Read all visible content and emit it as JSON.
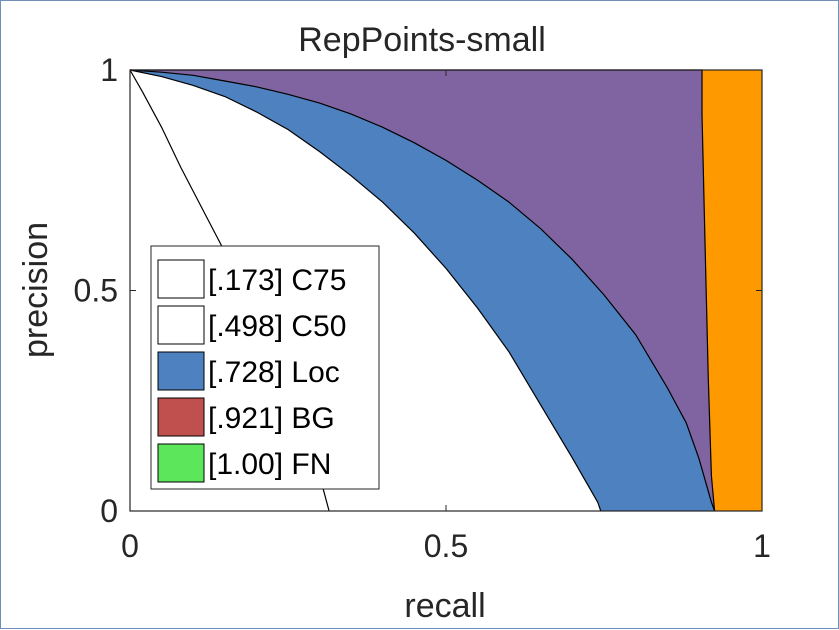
{
  "chart_data": {
    "type": "area",
    "title": "RepPoints-small",
    "xlabel": "recall",
    "ylabel": "precision",
    "xlim": [
      0,
      1
    ],
    "ylim": [
      0,
      1
    ],
    "xticks": [
      0,
      0.5,
      1
    ],
    "yticks": [
      0,
      0.5,
      1
    ],
    "xtick_labels": [
      "0",
      "0.5",
      "1"
    ],
    "ytick_labels": [
      "0",
      "0.5",
      "1"
    ],
    "grid": false,
    "legend_position": "bottom-left",
    "series": [
      {
        "name": "[.173] C75",
        "color": "#ffffff",
        "x": [
          0.0,
          0.02,
          0.05,
          0.08,
          0.12,
          0.16,
          0.2,
          0.24,
          0.28,
          0.3,
          0.315
        ],
        "y": [
          1.0,
          0.95,
          0.87,
          0.78,
          0.67,
          0.56,
          0.44,
          0.32,
          0.17,
          0.08,
          0.0
        ]
      },
      {
        "name": "[.498] C50",
        "color": "#ffffff",
        "x": [
          0.0,
          0.05,
          0.1,
          0.15,
          0.2,
          0.25,
          0.3,
          0.35,
          0.4,
          0.45,
          0.5,
          0.55,
          0.6,
          0.65,
          0.7,
          0.72,
          0.74,
          0.745
        ],
        "y": [
          1.0,
          0.985,
          0.965,
          0.94,
          0.905,
          0.865,
          0.815,
          0.76,
          0.7,
          0.63,
          0.55,
          0.46,
          0.36,
          0.24,
          0.12,
          0.07,
          0.02,
          0.0
        ]
      },
      {
        "name": "[.728] Loc",
        "color": "#4d81bf",
        "x": [
          0.0,
          0.05,
          0.1,
          0.15,
          0.2,
          0.25,
          0.3,
          0.35,
          0.4,
          0.45,
          0.5,
          0.55,
          0.6,
          0.65,
          0.7,
          0.75,
          0.8,
          0.85,
          0.88,
          0.9,
          0.91,
          0.92,
          0.925
        ],
        "y": [
          1.0,
          0.995,
          0.988,
          0.975,
          0.962,
          0.945,
          0.925,
          0.9,
          0.87,
          0.835,
          0.795,
          0.75,
          0.7,
          0.64,
          0.57,
          0.49,
          0.4,
          0.28,
          0.2,
          0.12,
          0.07,
          0.02,
          0.0
        ]
      },
      {
        "name": "[.921] BG",
        "color": "#c0504d",
        "x": [
          0.0,
          0.905,
          0.905,
          0.91,
          0.915,
          0.92,
          0.925
        ],
        "y": [
          1.0,
          1.0,
          0.9,
          0.6,
          0.3,
          0.08,
          0.0
        ]
      },
      {
        "name": "[1.00] FN",
        "color": "#5ce65c",
        "x": [
          0.0,
          1.0
        ],
        "y": [
          1.0,
          1.0
        ]
      }
    ],
    "fill_colors": {
      "fp_region": "#8064a2",
      "fn_region": "#ff9900"
    }
  },
  "legend": {
    "items": [
      {
        "label": "[.173] C75",
        "color": "#ffffff"
      },
      {
        "label": "[.498] C50",
        "color": "#ffffff"
      },
      {
        "label": "[.728] Loc",
        "color": "#4d81bf"
      },
      {
        "label": "[.921] BG",
        "color": "#c0504d"
      },
      {
        "label": "[1.00] FN",
        "color": "#5ce65c"
      }
    ]
  }
}
